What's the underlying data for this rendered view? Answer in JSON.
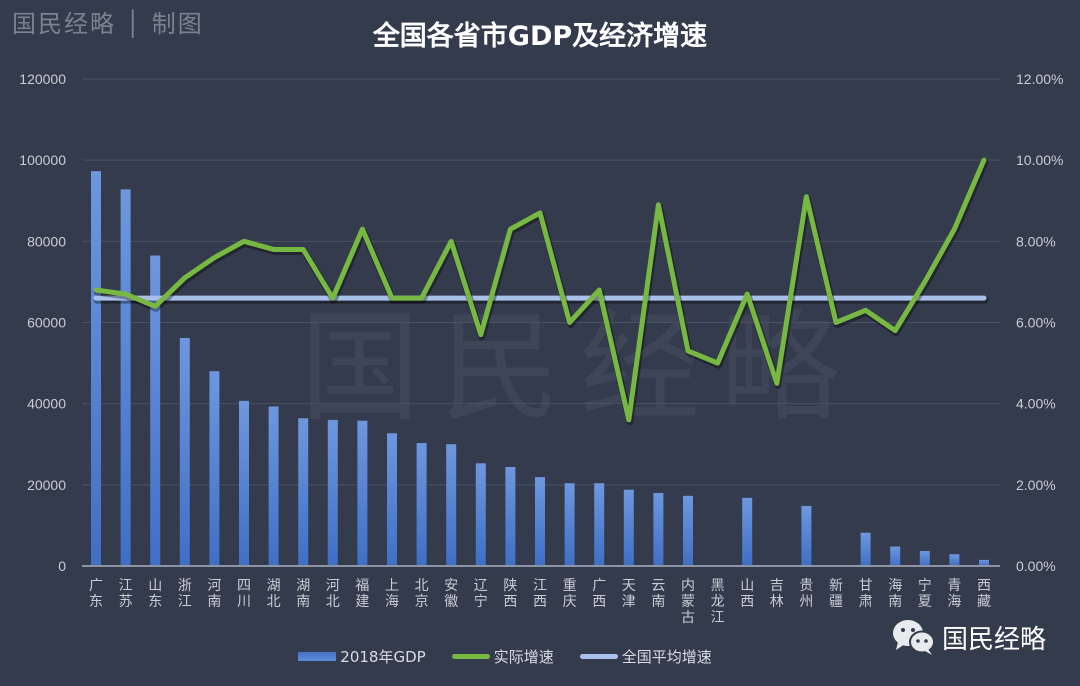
{
  "header": {
    "brand": "国民经略 │ 制图",
    "title": "全国各省市GDP及经济增速"
  },
  "watermark": "国民经略",
  "footer_logo": {
    "icon": "wechat-icon",
    "label": "国民经略"
  },
  "colors": {
    "background": "#343b4d",
    "bar": "#4f7fd4",
    "growth_line": "#77b843",
    "avg_line": "#a9c1ea",
    "grid": "#4a5264"
  },
  "legend": {
    "gdp": "2018年GDP",
    "growth": "实际增速",
    "avg": "全国平均增速"
  },
  "chart_data": {
    "type": "bar",
    "title": "全国各省市GDP及经济增速",
    "xlabel": "",
    "ylabel": "",
    "ylim": [
      0,
      120000
    ],
    "y2lim": [
      0,
      0.12
    ],
    "yticks": [
      "0",
      "20000",
      "40000",
      "60000",
      "80000",
      "100000",
      "120000"
    ],
    "y2ticks": [
      "0.00%",
      "2.00%",
      "4.00%",
      "6.00%",
      "8.00%",
      "10.00%",
      "12.00%"
    ],
    "grid": true,
    "legend_position": "bottom",
    "categories": [
      "广东",
      "江苏",
      "山东",
      "浙江",
      "河南",
      "四川",
      "湖北",
      "湖南",
      "河北",
      "福建",
      "上海",
      "北京",
      "安徽",
      "辽宁",
      "陕西",
      "江西",
      "重庆",
      "广西",
      "天津",
      "云南",
      "内蒙古",
      "黑龙江",
      "山西",
      "吉林",
      "贵州",
      "新疆",
      "甘肃",
      "海南",
      "宁夏",
      "青海",
      "西藏"
    ],
    "series": [
      {
        "name": "2018年GDP",
        "type": "bar",
        "axis": "left",
        "values": [
          97300,
          92800,
          76500,
          56200,
          48000,
          40700,
          39300,
          36400,
          36000,
          35800,
          32700,
          30300,
          30000,
          25300,
          24400,
          21900,
          20400,
          20400,
          18800,
          18000,
          17300,
          null,
          16800,
          null,
          14800,
          null,
          8200,
          4800,
          3700,
          2900,
          1500
        ]
      },
      {
        "name": "实际增速",
        "type": "line",
        "axis": "right",
        "values": [
          6.8,
          6.7,
          6.4,
          7.1,
          7.6,
          8.0,
          7.8,
          7.8,
          6.6,
          8.3,
          6.6,
          6.6,
          8.0,
          5.7,
          8.3,
          8.7,
          6.0,
          6.8,
          3.6,
          8.9,
          5.3,
          5.0,
          6.7,
          4.5,
          9.1,
          6.0,
          6.3,
          5.8,
          7.0,
          8.3,
          10.0
        ]
      },
      {
        "name": "全国平均增速",
        "type": "line",
        "axis": "right",
        "values": [
          6.6,
          6.6,
          6.6,
          6.6,
          6.6,
          6.6,
          6.6,
          6.6,
          6.6,
          6.6,
          6.6,
          6.6,
          6.6,
          6.6,
          6.6,
          6.6,
          6.6,
          6.6,
          6.6,
          6.6,
          6.6,
          6.6,
          6.6,
          6.6,
          6.6,
          6.6,
          6.6,
          6.6,
          6.6,
          6.6,
          6.6
        ]
      }
    ]
  }
}
